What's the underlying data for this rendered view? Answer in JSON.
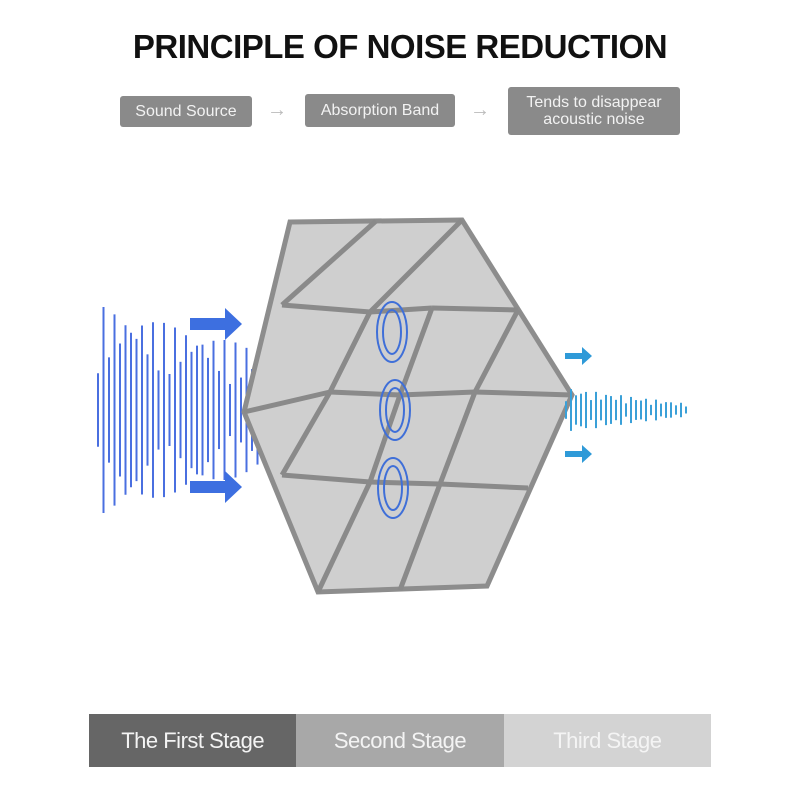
{
  "title": "PRINCIPLE OF NOISE REDUCTION",
  "flow": {
    "steps": [
      "Sound Source",
      "Absorption Band",
      "Tends to disappear acoustic noise"
    ],
    "arrow_icon": "right-arrow-icon"
  },
  "stages": [
    "The First Stage",
    "Second Stage",
    "Third Stage"
  ],
  "colors": {
    "wave_in": "#4a6fe0",
    "wave_out": "#3aa0d8",
    "panel": "#c9c9c9",
    "stage1": "#666666",
    "stage2": "#a8a8a8",
    "stage3": "#d3d3d3"
  }
}
